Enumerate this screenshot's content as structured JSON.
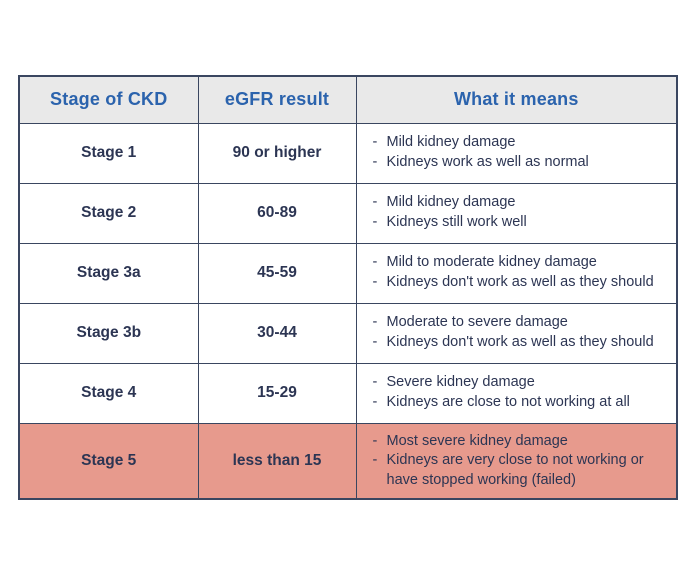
{
  "colors": {
    "border": "#3a4660",
    "header_text": "#2b63ad",
    "body_text": "#2c3553",
    "header_bg": "#e9e9e9",
    "highlight_bg": "#e79a8d",
    "page_bg": "#ffffff"
  },
  "table": {
    "headers": [
      "Stage of CKD",
      "eGFR result",
      "What it means"
    ],
    "bullet_prefix": "-",
    "rows": [
      {
        "stage": "Stage 1",
        "egfr": "90 or higher",
        "points": [
          "Mild kidney damage",
          "Kidneys work as well as normal"
        ],
        "highlight": false
      },
      {
        "stage": "Stage 2",
        "egfr": "60-89",
        "points": [
          "Mild kidney damage",
          "Kidneys still work well"
        ],
        "highlight": false
      },
      {
        "stage": "Stage 3a",
        "egfr": "45-59",
        "points": [
          "Mild to moderate kidney damage",
          "Kidneys don't work as well as they should"
        ],
        "highlight": false
      },
      {
        "stage": "Stage 3b",
        "egfr": "30-44",
        "points": [
          "Moderate to severe damage",
          "Kidneys don't work as well as they should"
        ],
        "highlight": false
      },
      {
        "stage": "Stage 4",
        "egfr": "15-29",
        "points": [
          "Severe kidney damage",
          "Kidneys are close to not working at all"
        ],
        "highlight": false
      },
      {
        "stage": "Stage 5",
        "egfr": "less than 15",
        "points": [
          "Most severe kidney damage",
          "Kidneys are very close to not working or have stopped working (failed)"
        ],
        "highlight": true
      }
    ]
  }
}
